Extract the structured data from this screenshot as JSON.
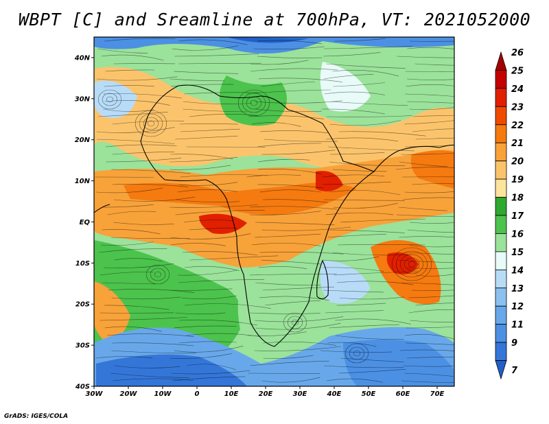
{
  "title": "WBPT [C] and Sreamline at 700hPa, VT: 2021052000",
  "credit": "GrADS: IGES/COLA",
  "map": {
    "lon_range": [
      -30,
      75
    ],
    "lat_range": [
      -40,
      45
    ],
    "lat_ticks": [
      {
        "value": 40,
        "label": "40N"
      },
      {
        "value": 30,
        "label": "30N"
      },
      {
        "value": 20,
        "label": "20N"
      },
      {
        "value": 10,
        "label": "10N"
      },
      {
        "value": 0,
        "label": "EQ"
      },
      {
        "value": -10,
        "label": "10S"
      },
      {
        "value": -20,
        "label": "20S"
      },
      {
        "value": -30,
        "label": "30S"
      },
      {
        "value": -40,
        "label": "40S"
      }
    ],
    "lon_ticks": [
      {
        "value": -30,
        "label": "30W"
      },
      {
        "value": -20,
        "label": "20W"
      },
      {
        "value": -10,
        "label": "10W"
      },
      {
        "value": 0,
        "label": "0"
      },
      {
        "value": 10,
        "label": "10E"
      },
      {
        "value": 20,
        "label": "20E"
      },
      {
        "value": 30,
        "label": "30E"
      },
      {
        "value": 40,
        "label": "40E"
      },
      {
        "value": 50,
        "label": "50E"
      },
      {
        "value": 60,
        "label": "60E"
      },
      {
        "value": 70,
        "label": "70E"
      }
    ]
  },
  "colorbar": {
    "levels": [
      {
        "label": "26",
        "color": "#a50000"
      },
      {
        "label": "25",
        "color": "#c40000"
      },
      {
        "label": "24",
        "color": "#e02000"
      },
      {
        "label": "23",
        "color": "#f04a00"
      },
      {
        "label": "22",
        "color": "#f57a10"
      },
      {
        "label": "21",
        "color": "#f8a23a"
      },
      {
        "label": "20",
        "color": "#fbc46c"
      },
      {
        "label": "19",
        "color": "#fde49c"
      },
      {
        "label": "18",
        "color": "#2ea82e"
      },
      {
        "label": "17",
        "color": "#4cc34c"
      },
      {
        "label": "16",
        "color": "#9be29b"
      },
      {
        "label": "15",
        "color": "#e8fbf8"
      },
      {
        "label": "14",
        "color": "#b8dcf8"
      },
      {
        "label": "13",
        "color": "#8cc0f0"
      },
      {
        "label": "12",
        "color": "#68a8ea"
      },
      {
        "label": "11",
        "color": "#4c90e4"
      },
      {
        "label": "9",
        "color": "#3476d8"
      },
      {
        "label": "7",
        "color": "#2060c8"
      }
    ]
  }
}
